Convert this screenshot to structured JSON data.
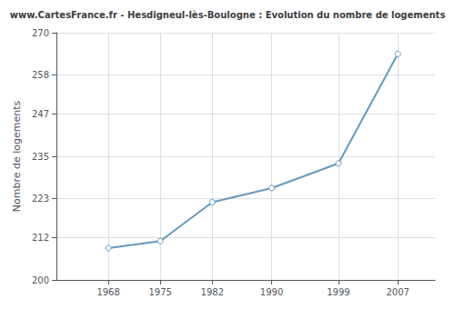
{
  "chart_data": {
    "type": "line",
    "title": "www.CartesFrance.fr - Hesdigneul-lès-Boulogne : Evolution du nombre de logements",
    "ylabel": "Nombre de logements",
    "x": [
      1968,
      1975,
      1982,
      1990,
      1999,
      2007
    ],
    "values": [
      209,
      211,
      222,
      226,
      233,
      264
    ],
    "color": "#6699bb",
    "marker": "circle",
    "xlim": [
      1961,
      2012
    ],
    "xticks": [
      1968,
      1975,
      1982,
      1990,
      1999,
      2007
    ],
    "ylim": [
      200,
      270
    ],
    "yticks": [
      200,
      212,
      223,
      235,
      247,
      258,
      270
    ],
    "grid": true
  }
}
